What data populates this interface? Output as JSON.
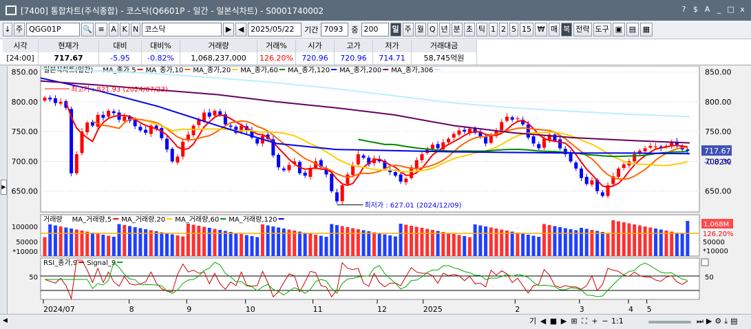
{
  "window": {
    "title": "[7400]  통합차트(주식종합) - 코스닥(Q6601P - 일간 - 일본식차트) - S0001740002",
    "icons": [
      "?",
      "$",
      "A",
      "_",
      "□",
      "x"
    ]
  },
  "toolbar": {
    "type_label": "주",
    "code_value": "QGG01P",
    "name_value": "코스닥",
    "date_value": "2025/05/22",
    "period_label": "기간",
    "period_value": "7093",
    "count_label": "중",
    "count_value": "200",
    "periods": [
      "일",
      "주",
      "월",
      "Q",
      "년",
      "분",
      "초",
      "틱",
      "1",
      "2",
      "5",
      "15"
    ],
    "selected_period": "일",
    "right_buttons": [
      "매",
      "복",
      "전략",
      "도구"
    ]
  },
  "quote": {
    "headers": [
      "시각",
      "현재가",
      "대비",
      "대비%",
      "거래량",
      "거래%",
      "시가",
      "고가",
      "저가",
      "거래대금"
    ],
    "values": [
      "[24:00]",
      "717.67",
      "-5.95",
      "-0.82%",
      "1,068,237,000",
      "126.20%",
      "720.96",
      "720.96",
      "714.71",
      "58,745억원"
    ],
    "colors": {
      "down": "#0000ff",
      "up": "#ff0000",
      "black": "#000000"
    }
  },
  "chart_data": {
    "type": "candlestick",
    "x_labels": [
      "2024/07",
      "8",
      "9",
      "10",
      "11",
      "12",
      "2025",
      "2",
      "3",
      "4",
      "5"
    ],
    "y_ticks": [
      850.0,
      800.0,
      750.0,
      700.0,
      650.0
    ],
    "ylim": [
      615,
      860
    ],
    "legend": [
      {
        "name": "일본식차트(일간)",
        "color": "#000000"
      },
      {
        "name": "MA_종가,5",
        "color": "#ff0000"
      },
      {
        "name": "MA_종가,10",
        "color": "#ff6600"
      },
      {
        "name": "MA_종가,20",
        "color": "#ffcc00"
      },
      {
        "name": "MA_종가,60",
        "color": "#008800"
      },
      {
        "name": "MA_종가,120",
        "color": "#0000ee"
      },
      {
        "name": "MA_종가,200",
        "color": "#660066"
      },
      {
        "name": "MA_종가,306",
        "color": "#bbeeff"
      }
    ],
    "close": [
      807,
      804,
      798,
      800,
      790,
      680,
      712,
      750,
      765,
      760,
      778,
      773,
      785,
      781,
      770,
      775,
      768,
      759,
      752,
      748,
      760,
      754,
      739,
      720,
      700,
      708,
      733,
      745,
      760,
      770,
      782,
      775,
      785,
      778,
      762,
      758,
      748,
      760,
      751,
      740,
      730,
      743,
      738,
      710,
      690,
      685,
      694,
      700,
      680,
      676,
      689,
      700,
      690,
      678,
      650,
      633,
      660,
      678,
      694,
      712,
      706,
      695,
      705,
      700,
      688,
      682,
      676,
      666,
      671,
      690,
      702,
      712,
      722,
      728,
      722,
      732,
      738,
      746,
      752,
      750,
      755,
      748,
      742,
      730,
      745,
      752,
      766,
      775,
      770,
      772,
      762,
      740,
      730,
      722,
      738,
      745,
      735,
      722,
      712,
      700,
      688,
      672,
      662,
      668,
      650,
      642,
      660,
      675,
      688,
      695,
      700,
      712,
      718,
      722,
      726,
      725,
      722,
      726,
      732,
      728,
      720,
      717.67
    ],
    "highest": {
      "label": "최고가 : 821.93 (2024/07/23)",
      "value": 821.93
    },
    "lowest": {
      "label": "최저가 : 627.01 (2024/12/09)",
      "value": 627.01
    },
    "current": {
      "label": "717.67",
      "pct": "-0.82%"
    },
    "volume": {
      "legend": [
        {
          "name": "거래량",
          "color": "#000000"
        },
        {
          "name": "MA_거래량,5",
          "color": "#ff0000"
        },
        {
          "name": "MA_거래량,20",
          "color": "#ffcc00"
        },
        {
          "name": "MA_거래량,60",
          "color": "#008800"
        },
        {
          "name": "MA_거래량,120",
          "color": "#0000ee"
        }
      ],
      "y_ticks": [
        "100000",
        "50000"
      ],
      "unit": "*10000",
      "current": "1,068M",
      "current_pct": "126.20%"
    },
    "rsi": {
      "legend": [
        {
          "name": "RSI_종가,9",
          "color": "#cc0000"
        },
        {
          "name": "Signal_9",
          "color": "#00aa00"
        }
      ],
      "y_tick": "50"
    }
  },
  "scroll": {
    "controls": [
      "기",
      "◀",
      "■",
      "▶",
      "⊞",
      "⛶",
      "+",
      "−",
      "1:1"
    ]
  }
}
